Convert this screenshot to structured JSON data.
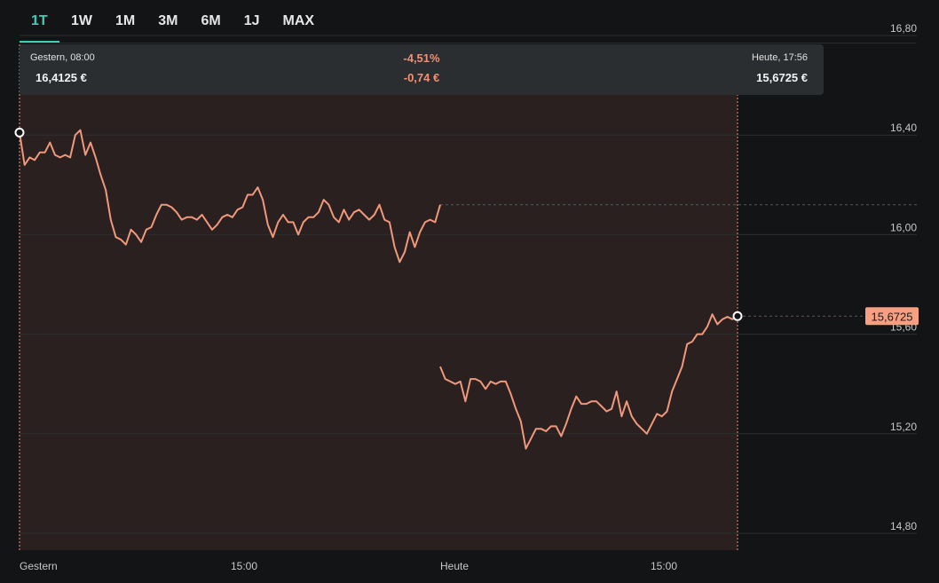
{
  "tabs": [
    {
      "label": "1T",
      "active": true
    },
    {
      "label": "1W",
      "active": false
    },
    {
      "label": "1M",
      "active": false
    },
    {
      "label": "3M",
      "active": false
    },
    {
      "label": "6M",
      "active": false
    },
    {
      "label": "1J",
      "active": false
    },
    {
      "label": "MAX",
      "active": false
    }
  ],
  "summary": {
    "start_label": "Gestern, 08:00",
    "start_value": "16,4125 €",
    "change_pct": "-4,51%",
    "change_abs": "-0,74 €",
    "end_label": "Heute, 17:56",
    "end_value": "15,6725 €"
  },
  "current_price_label": "15,6725",
  "colors": {
    "accent": "#3ccfb8",
    "line": "#f0987c",
    "negative": "#f28f74",
    "selection_fill": "#2a201f",
    "price_badge": "#f5a080"
  },
  "chart_data": {
    "type": "line",
    "ylim": [
      14.8,
      16.8
    ],
    "y_ticks": [
      "16,80",
      "16,40",
      "16,00",
      "15,60",
      "15,20",
      "14,80"
    ],
    "x_ticks": [
      "Gestern",
      "15:00",
      "Heute",
      "15:00"
    ],
    "previous_close_reference": 16.12,
    "series": [
      {
        "day": "Gestern",
        "values": [
          16.41,
          16.28,
          16.31,
          16.3,
          16.33,
          16.33,
          16.37,
          16.32,
          16.31,
          16.32,
          16.31,
          16.4,
          16.42,
          16.32,
          16.37,
          16.31,
          16.24,
          16.18,
          16.06,
          15.99,
          15.98,
          15.96,
          16.02,
          16.0,
          15.97,
          16.02,
          16.03,
          16.08,
          16.12,
          16.12,
          16.11,
          16.09,
          16.06,
          16.07,
          16.07,
          16.06,
          16.08,
          16.05,
          16.02,
          16.04,
          16.07,
          16.08,
          16.07,
          16.1,
          16.11,
          16.16,
          16.16,
          16.19,
          16.14,
          16.04,
          15.99,
          16.05,
          16.08,
          16.05,
          16.05,
          16.0,
          16.05,
          16.07,
          16.07,
          16.09,
          16.14,
          16.12,
          16.07,
          16.05,
          16.1,
          16.06,
          16.09,
          16.1,
          16.08,
          16.06,
          16.08,
          16.12,
          16.06,
          16.05,
          15.95,
          15.89,
          15.93,
          16.01,
          15.95,
          16.01,
          16.05,
          16.06,
          16.05,
          16.12
        ]
      },
      {
        "day": "Heute",
        "values": [
          15.47,
          15.42,
          15.41,
          15.4,
          15.41,
          15.33,
          15.42,
          15.42,
          15.41,
          15.38,
          15.41,
          15.4,
          15.41,
          15.41,
          15.36,
          15.3,
          15.25,
          15.14,
          15.18,
          15.22,
          15.22,
          15.21,
          15.23,
          15.23,
          15.19,
          15.24,
          15.3,
          15.35,
          15.32,
          15.32,
          15.33,
          15.33,
          15.31,
          15.29,
          15.3,
          15.37,
          15.27,
          15.33,
          15.27,
          15.24,
          15.22,
          15.2,
          15.24,
          15.28,
          15.27,
          15.29,
          15.37,
          15.42,
          15.47,
          15.56,
          15.57,
          15.6,
          15.6,
          15.63,
          15.68,
          15.64,
          15.66,
          15.67,
          15.66,
          15.6725
        ]
      }
    ]
  }
}
